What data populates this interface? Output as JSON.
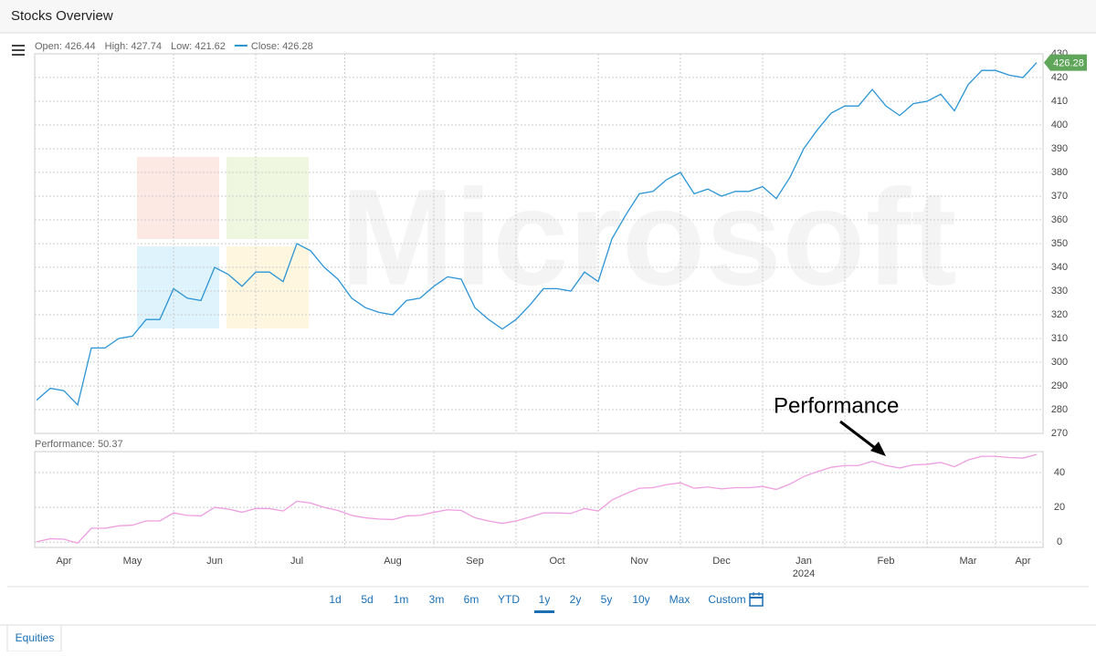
{
  "header": {
    "title": "Stocks Overview"
  },
  "chart_data": [
    {
      "type": "line",
      "watermark": "Microsoft",
      "stats": [
        {
          "label": "Open:",
          "value": 426.44
        },
        {
          "label": "High:",
          "value": 427.74
        },
        {
          "label": "Low:",
          "value": 421.62
        }
      ],
      "series": [
        {
          "name": "Close:",
          "color": "#2b95d6",
          "values": [
            284,
            289,
            288,
            282,
            306,
            306,
            310,
            311,
            318,
            318,
            331,
            327,
            326,
            340,
            337,
            332,
            338,
            338,
            334,
            350,
            347,
            340,
            335,
            327,
            323,
            321,
            320,
            326,
            327,
            332,
            336,
            335,
            323,
            318,
            314,
            318,
            324,
            331,
            331,
            330,
            338,
            334,
            352,
            362,
            371,
            372,
            377,
            380,
            371,
            373,
            370,
            372,
            372,
            374,
            369,
            378,
            390,
            398,
            405,
            408,
            408,
            415,
            408,
            404,
            409,
            410,
            413,
            406,
            417,
            423,
            423,
            421,
            420,
            426.28
          ]
        }
      ],
      "ylim": [
        270,
        430
      ],
      "yticks": [
        270,
        280,
        290,
        300,
        310,
        320,
        330,
        340,
        350,
        360,
        370,
        380,
        390,
        400,
        410,
        420,
        430
      ],
      "grid": true,
      "tag_color": "#5fa55a"
    },
    {
      "type": "line",
      "series": [
        {
          "name": "Performance:",
          "color": "#ee9ee0",
          "values": [
            0.2,
            2.0,
            1.7,
            -0.5,
            8.0,
            8.0,
            9.4,
            9.8,
            12.2,
            12.2,
            16.8,
            15.4,
            15.1,
            20.0,
            19.0,
            17.2,
            19.3,
            19.3,
            17.9,
            23.5,
            22.5,
            20.0,
            18.2,
            15.4,
            14.0,
            13.3,
            13.0,
            15.1,
            15.4,
            17.2,
            18.6,
            18.2,
            14.0,
            12.2,
            10.8,
            12.2,
            14.4,
            16.8,
            16.8,
            16.5,
            19.3,
            17.9,
            24.2,
            27.8,
            31.0,
            31.3,
            33.1,
            34.1,
            31.0,
            31.7,
            30.6,
            31.3,
            31.3,
            32.0,
            30.3,
            33.4,
            37.7,
            40.5,
            43.0,
            44.0,
            44.0,
            46.5,
            44.0,
            42.6,
            44.4,
            44.7,
            45.8,
            43.3,
            47.2,
            49.3,
            49.3,
            48.6,
            48.3,
            50.37
          ]
        }
      ],
      "categories": [
        null,
        null,
        "Apr",
        null,
        null,
        null,
        null,
        "May",
        null,
        null,
        null,
        null,
        null,
        "Jun",
        null,
        null,
        null,
        null,
        null,
        "Jul",
        null,
        null,
        null,
        null,
        null,
        null,
        "Aug",
        null,
        null,
        null,
        null,
        null,
        "Sep",
        null,
        null,
        null,
        null,
        null,
        "Oct",
        null,
        null,
        null,
        null,
        null,
        "Nov",
        null,
        null,
        null,
        null,
        null,
        "Dec",
        null,
        null,
        null,
        null,
        null,
        "Jan",
        null,
        null,
        null,
        null,
        null,
        "Feb",
        null,
        null,
        null,
        null,
        null,
        "Mar",
        null,
        null,
        null,
        "Apr",
        null
      ],
      "year_label": "2024",
      "ylim": [
        -3,
        52
      ],
      "yticks": [
        0,
        20,
        40
      ],
      "grid": true,
      "annotation": "Performance"
    }
  ],
  "range_buttons": {
    "items": [
      "1d",
      "5d",
      "1m",
      "3m",
      "6m",
      "YTD",
      "1y",
      "2y",
      "5y",
      "10y",
      "Max",
      "Custom"
    ],
    "selected": "1y"
  },
  "tabs": [
    "Equities"
  ]
}
